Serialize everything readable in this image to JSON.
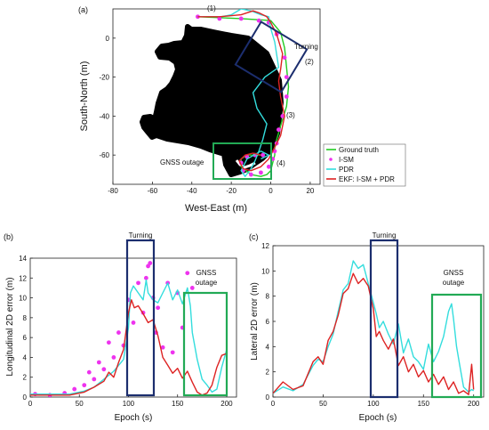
{
  "panel_a": {
    "tag": "(a)",
    "xlabel": "West-East (m)",
    "ylabel": "South-North (m)",
    "xlim": [
      -80,
      25
    ],
    "ylim": [
      -75,
      15
    ],
    "xticks": [
      "-80",
      "-60",
      "-40",
      "-20",
      "0",
      "20"
    ],
    "yticks": [
      "0",
      "-20",
      "-40",
      "-60"
    ],
    "annotations": {
      "seg1": "(1)",
      "seg2": "(2)",
      "seg3": "(3)",
      "seg4": "(4)",
      "turning": "Turning",
      "gnss": "GNSS outage"
    },
    "legend": [
      "Ground truth",
      "I-SM",
      "PDR",
      "EKF: I-SM + PDR"
    ],
    "colors": {
      "truth": "#22cc22",
      "ism": "#ee33ee",
      "pdr": "#33dddd",
      "ekf": "#dd2222",
      "map": "#000000",
      "box_turn": "#1c2e6e",
      "box_gnss": "#22aa55"
    }
  },
  "panel_b": {
    "tag": "(b)",
    "xlabel": "Epoch (s)",
    "ylabel": "Longitudinal 2D error (m)",
    "xlim": [
      0,
      210
    ],
    "ylim": [
      0,
      14
    ],
    "xticks": [
      "0",
      "50",
      "100",
      "150",
      "200"
    ],
    "yticks": [
      "0",
      "2",
      "4",
      "6",
      "8",
      "10",
      "12",
      "14"
    ],
    "turning": "Turning",
    "gnss": "GNSS",
    "gnss2": "outage"
  },
  "panel_c": {
    "tag": "(c)",
    "xlabel": "Epoch (s)",
    "ylabel": "Lateral 2D error (m)",
    "xlim": [
      0,
      210
    ],
    "ylim": [
      0,
      12
    ],
    "xticks": [
      "0",
      "50",
      "100",
      "150",
      "200"
    ],
    "yticks": [
      "0",
      "2",
      "4",
      "6",
      "8",
      "10",
      "12"
    ],
    "turning": "Turning",
    "gnss": "GNSS",
    "gnss2": "outage"
  },
  "chart_data": [
    {
      "type": "line",
      "panel": "a",
      "title": "",
      "xlabel": "West-East (m)",
      "ylabel": "South-North (m)",
      "xlim": [
        -80,
        25
      ],
      "ylim": [
        -75,
        15
      ],
      "series": [
        {
          "name": "Ground truth",
          "x": [
            -37,
            -15,
            0,
            5,
            7,
            8,
            9,
            8,
            5,
            3,
            2,
            2,
            1,
            0,
            -2,
            -5,
            -10,
            -15,
            -15,
            -12,
            -8,
            -4
          ],
          "y": [
            11,
            10,
            9,
            3,
            -5,
            -15,
            -25,
            -35,
            -45,
            -52,
            -56,
            -60,
            -64,
            -68,
            -70,
            -71,
            -70,
            -66,
            -62,
            -60,
            -60,
            -60
          ]
        },
        {
          "name": "I-SM",
          "x": [
            -37,
            -26,
            -15,
            -6,
            -1,
            3,
            7,
            8,
            8,
            6,
            4,
            3,
            2,
            1,
            -1,
            -5,
            -10,
            -14,
            -15,
            -12,
            -8,
            -4
          ],
          "y": [
            11,
            10,
            10,
            9,
            8,
            2,
            -10,
            -20,
            -30,
            -40,
            -47,
            -54,
            -58,
            -62,
            -66,
            -69,
            -70,
            -68,
            -64,
            -61,
            -60,
            -60
          ]
        },
        {
          "name": "PDR",
          "x": [
            -37,
            -25,
            -20,
            -15,
            -10,
            -5,
            -1,
            0,
            2,
            4,
            -3,
            -9,
            -7,
            -2,
            -4,
            -6,
            -8,
            -10,
            -13,
            -15,
            -12,
            -5,
            -1,
            -5
          ],
          "y": [
            11,
            11,
            12,
            15,
            14,
            12,
            11,
            5,
            -2,
            -15,
            -20,
            -28,
            -36,
            -44,
            -52,
            -58,
            -63,
            -67,
            -71,
            -68,
            -62,
            -58,
            -60,
            -62
          ]
        },
        {
          "name": "EKF: I-SM + PDR",
          "x": [
            -37,
            -26,
            -15,
            -9,
            -6,
            -2,
            0,
            3,
            6,
            5,
            4,
            5,
            7,
            5,
            2,
            -1,
            -5,
            -10,
            -14,
            -16,
            -13,
            -9,
            -5
          ],
          "y": [
            11,
            11,
            12,
            14,
            13,
            11,
            8,
            2,
            -8,
            -16,
            -22,
            -30,
            -40,
            -50,
            -56,
            -62,
            -66,
            -68,
            -67,
            -63,
            -60,
            -59,
            -60
          ]
        }
      ]
    },
    {
      "type": "line",
      "panel": "b",
      "title": "",
      "xlabel": "Epoch (s)",
      "ylabel": "Longitudinal 2D error (m)",
      "xlim": [
        0,
        210
      ],
      "ylim": [
        0,
        14
      ],
      "series": [
        {
          "name": "I-SM",
          "x": [
            5,
            20,
            35,
            45,
            55,
            60,
            65,
            70,
            75,
            80,
            85,
            90,
            95,
            100,
            105,
            110,
            115,
            118,
            120,
            122,
            125,
            128,
            130,
            135,
            140,
            145,
            150,
            155,
            160,
            165
          ],
          "y": [
            0.3,
            0.2,
            0.4,
            0.8,
            1.2,
            2.5,
            1.8,
            3.5,
            2.8,
            5.5,
            4,
            6.5,
            5.2,
            9.8,
            7.5,
            11.5,
            8.5,
            12,
            13.2,
            13.5,
            10,
            6.5,
            9,
            5,
            11.5,
            4.5,
            10.5,
            7,
            12.5,
            11
          ]
        },
        {
          "name": "PDR",
          "x": [
            0,
            40,
            55,
            65,
            75,
            85,
            95,
            100,
            102,
            105,
            110,
            115,
            118,
            120,
            125,
            130,
            135,
            140,
            145,
            150,
            155,
            160,
            163,
            165,
            170,
            175,
            180,
            185,
            190,
            195,
            200
          ],
          "y": [
            0.3,
            0.3,
            0.6,
            1,
            1.8,
            2.6,
            3.8,
            7,
            10.5,
            11.2,
            10.5,
            9.8,
            11.8,
            10.5,
            9.8,
            9.5,
            10.5,
            11.5,
            9.8,
            10.8,
            9.4,
            11,
            9.2,
            6.5,
            3.8,
            1.8,
            1.2,
            0.5,
            0.8,
            3,
            4.8
          ]
        },
        {
          "name": "EKF: I-SM + PDR",
          "x": [
            0,
            40,
            55,
            65,
            75,
            80,
            85,
            90,
            95,
            100,
            103,
            106,
            110,
            115,
            120,
            125,
            130,
            135,
            140,
            145,
            150,
            155,
            160,
            165,
            170,
            175,
            180,
            185,
            190,
            195,
            200
          ],
          "y": [
            0.2,
            0.2,
            0.5,
            1,
            1.6,
            2.5,
            2,
            3.5,
            4.8,
            8.5,
            9.8,
            9,
            9.2,
            8.4,
            7.5,
            7.8,
            6.2,
            4,
            3.2,
            2.4,
            2.9,
            1.9,
            2.6,
            1.5,
            0.5,
            0.2,
            0.4,
            1.2,
            3,
            4.2,
            4.4
          ]
        }
      ]
    },
    {
      "type": "line",
      "panel": "c",
      "title": "",
      "xlabel": "Epoch (s)",
      "ylabel": "Lateral 2D error (m)",
      "xlim": [
        0,
        210
      ],
      "ylim": [
        0,
        12
      ],
      "series": [
        {
          "name": "PDR",
          "x": [
            0,
            10,
            20,
            30,
            40,
            45,
            50,
            55,
            60,
            65,
            70,
            75,
            80,
            85,
            90,
            95,
            100,
            103,
            106,
            110,
            115,
            120,
            125,
            130,
            135,
            140,
            145,
            150,
            155,
            160,
            165,
            170,
            175,
            178,
            180,
            183,
            186,
            190,
            195,
            198,
            200
          ],
          "y": [
            0.3,
            0.8,
            0.5,
            1,
            2.5,
            3,
            2.8,
            4,
            5,
            6.8,
            8.5,
            9,
            10.8,
            10.2,
            10.5,
            9,
            7.5,
            6.6,
            5.5,
            6,
            5,
            4.2,
            5.8,
            3.5,
            4.6,
            3.2,
            2.8,
            2.2,
            4.2,
            2.8,
            3.6,
            4.8,
            6.8,
            7.4,
            6.2,
            4,
            2.6,
            0.8,
            0.4,
            0.6,
            0.5
          ]
        },
        {
          "name": "EKF: I-SM + PDR",
          "x": [
            0,
            10,
            20,
            30,
            40,
            45,
            50,
            55,
            60,
            65,
            70,
            75,
            80,
            85,
            90,
            95,
            100,
            103,
            106,
            110,
            115,
            120,
            125,
            130,
            135,
            140,
            145,
            150,
            155,
            160,
            165,
            170,
            175,
            180,
            185,
            190,
            195,
            198,
            200
          ],
          "y": [
            0.3,
            1.2,
            0.6,
            0.9,
            2.8,
            3.2,
            2.6,
            4.5,
            5.2,
            6.5,
            8.2,
            8.6,
            9.8,
            9,
            9.4,
            8.8,
            7,
            4.8,
            5.2,
            4.5,
            3.8,
            4.6,
            2.5,
            3.2,
            2,
            2.6,
            1.6,
            2.1,
            1.2,
            1.8,
            1,
            1.6,
            0.6,
            1.2,
            0.3,
            0.5,
            0.2,
            2.6,
            0.6
          ]
        }
      ]
    }
  ]
}
